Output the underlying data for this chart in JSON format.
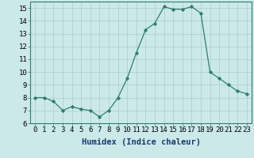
{
  "x": [
    0,
    1,
    2,
    3,
    4,
    5,
    6,
    7,
    8,
    9,
    10,
    11,
    12,
    13,
    14,
    15,
    16,
    17,
    18,
    19,
    20,
    21,
    22,
    23
  ],
  "y": [
    8.0,
    8.0,
    7.7,
    7.0,
    7.3,
    7.1,
    7.0,
    6.5,
    7.0,
    8.0,
    9.5,
    11.5,
    13.3,
    13.8,
    15.1,
    14.9,
    14.9,
    15.1,
    14.6,
    10.0,
    9.5,
    9.0,
    8.5,
    8.3
  ],
  "xlabel": "Humidex (Indice chaleur)",
  "ylim": [
    6,
    15.5
  ],
  "xlim": [
    -0.5,
    23.5
  ],
  "line_color": "#2e7d6e",
  "marker_color": "#2e7d6e",
  "bg_color": "#cce9e9",
  "grid_color": "#aacccc",
  "tick_fontsize": 6.5,
  "label_fontsize": 7.5,
  "yticks": [
    6,
    7,
    8,
    9,
    10,
    11,
    12,
    13,
    14,
    15
  ],
  "xticks": [
    0,
    1,
    2,
    3,
    4,
    5,
    6,
    7,
    8,
    9,
    10,
    11,
    12,
    13,
    14,
    15,
    16,
    17,
    18,
    19,
    20,
    21,
    22,
    23
  ]
}
